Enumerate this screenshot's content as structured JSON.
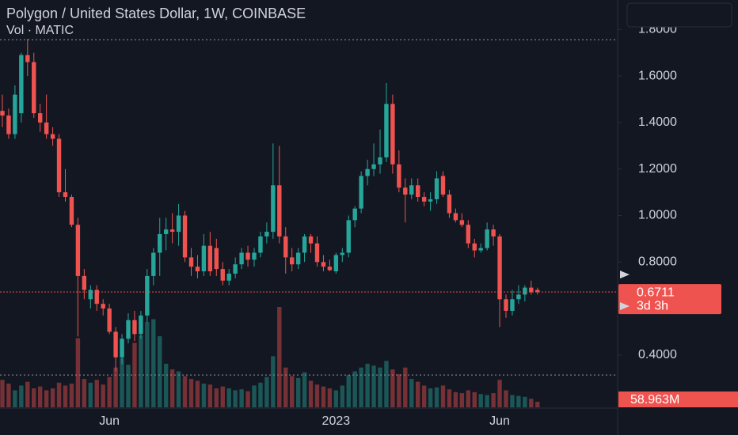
{
  "chart_data": {
    "type": "candlestick",
    "title": "Polygon / United States Dollar, 1W, COINBASE",
    "subtitle": "Vol · MATIC",
    "up_color": "#26a69a",
    "down_color": "#ef5350",
    "categories": [
      null,
      null,
      null,
      null,
      null,
      null,
      null,
      null,
      null,
      null,
      null,
      null,
      null,
      null,
      null,
      null,
      null,
      "Jun",
      null,
      null,
      null,
      null,
      null,
      null,
      null,
      null,
      null,
      null,
      null,
      null,
      null,
      null,
      null,
      null,
      null,
      null,
      null,
      null,
      null,
      null,
      null,
      null,
      null,
      null,
      null,
      null,
      null,
      null,
      null,
      null,
      null,
      null,
      null,
      "2023",
      null,
      null,
      null,
      null,
      null,
      null,
      null,
      null,
      null,
      null,
      null,
      null,
      null,
      null,
      null,
      null,
      null,
      null,
      null,
      null,
      null,
      null,
      null,
      null,
      null,
      "Jun",
      null,
      null,
      null,
      null,
      null,
      null
    ],
    "open": [
      1.45,
      1.43,
      1.35,
      1.44,
      1.69,
      1.66,
      1.44,
      1.4,
      1.35,
      1.33,
      1.1,
      1.08,
      0.96,
      0.74,
      0.64,
      0.68,
      0.62,
      0.6,
      0.5,
      0.39,
      0.47,
      0.55,
      0.49,
      0.57,
      0.74,
      0.84,
      0.92,
      0.94,
      0.93,
      1.0,
      0.82,
      0.78,
      0.76,
      0.87,
      0.86,
      0.77,
      0.72,
      0.75,
      0.79,
      0.84,
      0.81,
      0.84,
      0.91,
      0.93,
      1.13,
      0.91,
      0.82,
      0.79,
      0.84,
      0.91,
      0.88,
      0.8,
      0.78,
      0.76,
      0.83,
      0.84,
      0.98,
      1.03,
      1.17,
      1.2,
      1.22,
      1.25,
      1.48,
      1.22,
      1.12,
      1.09,
      1.13,
      1.08,
      1.06,
      1.07,
      1.17,
      1.09,
      1.01,
      0.98,
      0.96,
      0.88,
      0.85,
      0.86,
      0.94,
      0.91,
      0.64,
      0.59,
      0.64,
      0.66,
      0.69,
      0.68
    ],
    "high": [
      1.52,
      1.46,
      1.56,
      1.7,
      1.76,
      1.7,
      1.48,
      1.52,
      1.38,
      1.35,
      1.2,
      1.09,
      0.99,
      0.77,
      0.7,
      0.7,
      0.64,
      0.62,
      0.52,
      0.49,
      0.58,
      0.59,
      0.59,
      0.77,
      0.86,
      0.99,
      0.99,
      1.01,
      1.05,
      1.02,
      0.86,
      0.83,
      0.92,
      0.93,
      0.9,
      0.8,
      0.77,
      0.82,
      0.86,
      0.87,
      0.86,
      0.93,
      0.97,
      1.31,
      1.3,
      0.95,
      0.86,
      0.86,
      0.92,
      0.92,
      0.91,
      0.83,
      0.81,
      0.84,
      0.86,
      1.0,
      1.04,
      1.19,
      1.24,
      1.31,
      1.37,
      1.57,
      1.52,
      1.28,
      1.16,
      1.16,
      1.16,
      1.1,
      1.1,
      1.19,
      1.19,
      1.11,
      1.03,
      1.01,
      0.98,
      0.9,
      0.88,
      0.97,
      0.96,
      0.92,
      0.66,
      0.68,
      0.7,
      0.7,
      0.72,
      0.69
    ],
    "low": [
      1.38,
      1.33,
      1.33,
      1.4,
      1.6,
      1.42,
      1.36,
      1.33,
      1.3,
      1.08,
      1.06,
      0.95,
      0.48,
      0.64,
      0.6,
      0.59,
      0.57,
      0.49,
      0.33,
      0.36,
      0.45,
      0.46,
      0.47,
      0.54,
      0.7,
      0.74,
      0.85,
      0.88,
      0.87,
      0.8,
      0.74,
      0.73,
      0.74,
      0.74,
      0.74,
      0.7,
      0.7,
      0.73,
      0.77,
      0.78,
      0.78,
      0.82,
      0.88,
      0.9,
      0.88,
      0.75,
      0.76,
      0.77,
      0.8,
      0.84,
      0.78,
      0.76,
      0.76,
      0.75,
      0.8,
      0.82,
      0.95,
      1.01,
      1.13,
      1.17,
      1.18,
      1.23,
      1.18,
      1.1,
      0.97,
      1.07,
      1.06,
      1.04,
      1.02,
      1.05,
      1.08,
      0.99,
      0.97,
      0.95,
      0.86,
      0.82,
      0.84,
      0.85,
      0.87,
      0.52,
      0.56,
      0.57,
      0.62,
      0.63,
      0.66,
      0.66
    ],
    "close": [
      1.43,
      1.35,
      1.52,
      1.69,
      1.66,
      1.44,
      1.4,
      1.35,
      1.33,
      1.1,
      1.08,
      0.96,
      0.74,
      0.68,
      0.68,
      0.62,
      0.6,
      0.5,
      0.39,
      0.47,
      0.55,
      0.49,
      0.57,
      0.74,
      0.84,
      0.92,
      0.94,
      0.93,
      1.0,
      0.82,
      0.78,
      0.76,
      0.87,
      0.76,
      0.77,
      0.72,
      0.75,
      0.79,
      0.84,
      0.81,
      0.84,
      0.91,
      0.93,
      1.13,
      0.91,
      0.82,
      0.79,
      0.84,
      0.91,
      0.88,
      0.8,
      0.78,
      0.765,
      0.83,
      0.84,
      0.98,
      1.03,
      1.17,
      1.2,
      1.22,
      1.25,
      1.48,
      1.22,
      1.12,
      1.09,
      1.13,
      1.08,
      1.06,
      1.07,
      1.16,
      1.09,
      1.01,
      0.98,
      0.96,
      0.88,
      0.85,
      0.86,
      0.94,
      0.91,
      0.64,
      0.59,
      0.64,
      0.66,
      0.69,
      0.67,
      0.6711
    ],
    "volume": {
      "values": [
        290,
        250,
        180,
        230,
        270,
        200,
        220,
        180,
        200,
        260,
        230,
        250,
        730,
        300,
        260,
        290,
        240,
        320,
        420,
        520,
        450,
        680,
        760,
        900,
        930,
        750,
        460,
        400,
        380,
        330,
        300,
        280,
        250,
        240,
        200,
        220,
        200,
        180,
        190,
        170,
        230,
        260,
        320,
        540,
        1060,
        420,
        330,
        310,
        370,
        280,
        240,
        220,
        200,
        180,
        230,
        340,
        380,
        420,
        460,
        440,
        420,
        490,
        400,
        350,
        420,
        300,
        270,
        230,
        200,
        210,
        230,
        190,
        160,
        150,
        180,
        160,
        140,
        130,
        150,
        290,
        180,
        130,
        120,
        110,
        90,
        58.963
      ],
      "last_label": "58.963M"
    },
    "countdown": "3d 3h",
    "price_lines": [
      1.756,
      0.314
    ],
    "ylim": [
      0.175,
      1.927
    ],
    "yticks": [
      {
        "value": 1.8,
        "label": "1.8000"
      },
      {
        "value": 1.6,
        "label": "1.6000"
      },
      {
        "value": 1.4,
        "label": "1.4000"
      },
      {
        "value": 1.2,
        "label": "1.2000"
      },
      {
        "value": 1.0,
        "label": "1.0000"
      },
      {
        "value": 0.8,
        "label": "0.8000"
      },
      {
        "value": 0.4,
        "label": "0.4000"
      }
    ],
    "vlim": [
      0,
      4300
    ]
  }
}
